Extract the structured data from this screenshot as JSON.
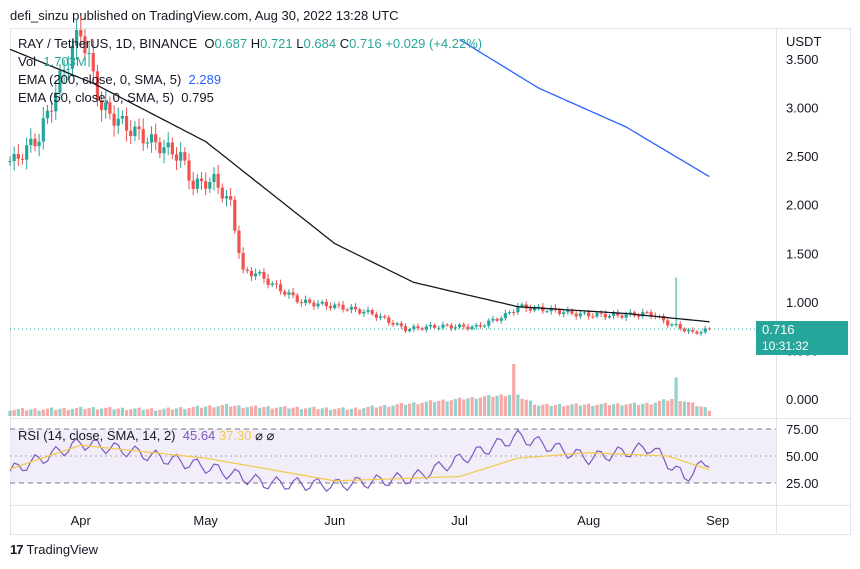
{
  "header": {
    "publish_line": "defi_sinzu published on TradingView.com, Aug 30, 2022 13:28 UTC"
  },
  "legend": {
    "symbol": "RAY / TetherUS, 1D, BINANCE",
    "o_label": "O",
    "o_value": "0.687",
    "h_label": "H",
    "h_value": "0.721",
    "l_label": "L",
    "l_value": "0.684",
    "c_label": "C",
    "c_value": "0.716",
    "change": "+0.029 (+4.22%)",
    "vol_label": "Vol",
    "vol_value": "1.703M",
    "ema200_label": "EMA (200, close, 0, SMA, 5)",
    "ema200_value": "2.289",
    "ema50_label": "EMA (50, close, 0, SMA, 5)",
    "ema50_value": "0.795",
    "rsi_label": "RSI (14, close, SMA, 14, 2)",
    "rsi_value": "45.64",
    "rsi_sma_value": "37.30",
    "rsi_icons": "⌀ ⌀"
  },
  "price_axis": {
    "currency": "USDT",
    "ticks": [
      "3.500",
      "3.000",
      "2.500",
      "2.000",
      "1.500",
      "1.000",
      "0.500",
      "0.000"
    ],
    "last_price": "0.716",
    "countdown": "10:31:32"
  },
  "rsi_axis": {
    "ticks": [
      "75.00",
      "50.00",
      "25.00"
    ]
  },
  "time_axis": {
    "ticks": [
      "Apr",
      "May",
      "Jun",
      "Jul",
      "Aug",
      "Sep"
    ]
  },
  "footer": {
    "brand": "TradingView",
    "logo_glyph": "17"
  },
  "colors": {
    "up": "#26a69a",
    "down": "#ef5350",
    "ema200": "#2962ff",
    "ema50": "#131722",
    "rsi": "#7e57c2",
    "rsi_sma": "#f2c94c",
    "rsi_band": "#ede7f6",
    "vol_up": "#26a69a",
    "vol_down": "#ef5350"
  },
  "chart_data": {
    "type": "line",
    "title": "RAY / TetherUS, 1D, BINANCE",
    "x_range": [
      "2022-03-15",
      "2022-09-15"
    ],
    "ylim": [
      0,
      3.7
    ],
    "series": [
      {
        "name": "RAY / TetherUS",
        "kind": "candlestick",
        "x": [
          "2022-03-16",
          "2022-03-22",
          "2022-03-28",
          "2022-04-01",
          "2022-04-06",
          "2022-04-12",
          "2022-04-18",
          "2022-04-25",
          "2022-04-28",
          "2022-05-03",
          "2022-05-07",
          "2022-05-10",
          "2022-05-13",
          "2022-05-18",
          "2022-05-24",
          "2022-06-02",
          "2022-06-10",
          "2022-06-18",
          "2022-06-26",
          "2022-07-05",
          "2022-07-12",
          "2022-07-15",
          "2022-07-22",
          "2022-07-30",
          "2022-08-08",
          "2022-08-16",
          "2022-08-20",
          "2022-08-22",
          "2022-08-26",
          "2022-08-30"
        ],
        "values": [
          2.45,
          2.7,
          3.4,
          3.8,
          3.0,
          2.8,
          2.65,
          2.5,
          2.2,
          2.25,
          2.0,
          1.3,
          1.3,
          1.15,
          1.0,
          0.95,
          0.88,
          0.72,
          0.75,
          0.74,
          0.86,
          0.95,
          0.92,
          0.87,
          0.86,
          0.88,
          0.78,
          0.75,
          0.68,
          0.716
        ]
      },
      {
        "name": "EMA (200, close, 0, SMA, 5)",
        "x": [
          "2022-07-01",
          "2022-07-20",
          "2022-08-10",
          "2022-08-30"
        ],
        "values": [
          3.7,
          3.2,
          2.8,
          2.289
        ]
      },
      {
        "name": "EMA (50, close, 0, SMA, 5)",
        "x": [
          "2022-03-15",
          "2022-04-04",
          "2022-05-01",
          "2022-06-01",
          "2022-06-20",
          "2022-07-15",
          "2022-08-10",
          "2022-08-30"
        ],
        "values": [
          3.6,
          3.25,
          2.65,
          1.6,
          1.2,
          0.95,
          0.88,
          0.795
        ]
      }
    ],
    "volume": {
      "x": [
        "2022-03-20",
        "2022-04-04",
        "2022-04-20",
        "2022-05-06",
        "2022-05-10",
        "2022-06-05",
        "2022-07-14",
        "2022-07-20",
        "2022-08-15",
        "2022-08-22",
        "2022-08-30"
      ],
      "values": [
        0.1,
        0.15,
        0.1,
        0.25,
        0.2,
        0.12,
        0.65,
        0.25,
        0.3,
        0.5,
        0.1
      ]
    },
    "rsi": {
      "x": [
        "2022-03-15",
        "2022-04-01",
        "2022-04-12",
        "2022-05-01",
        "2022-05-15",
        "2022-06-01",
        "2022-06-20",
        "2022-07-15",
        "2022-08-01",
        "2022-08-16",
        "2022-08-24",
        "2022-08-30"
      ],
      "values": [
        36,
        62,
        55,
        40,
        25,
        23,
        30,
        68,
        48,
        58,
        30,
        45.64
      ]
    },
    "rsi_sma": {
      "x": [
        "2022-03-15",
        "2022-04-01",
        "2022-05-01",
        "2022-06-01",
        "2022-07-01",
        "2022-07-15",
        "2022-08-01",
        "2022-08-20",
        "2022-08-30"
      ],
      "values": [
        38,
        60,
        48,
        27,
        31,
        48,
        53,
        50,
        37.3
      ]
    }
  }
}
